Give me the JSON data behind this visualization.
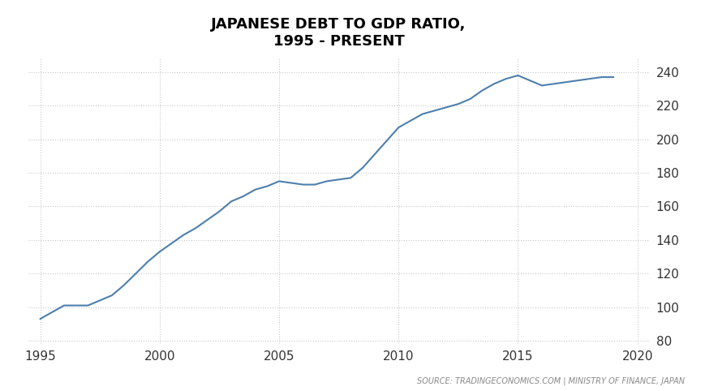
{
  "title": "JAPANESE DEBT TO GDP RATIO,\n1995 - PRESENT",
  "source_text": "SOURCE: TRADINGECONOMICS.COM | MINISTRY OF FINANCE, JAPAN",
  "line_color": "#4d7fad",
  "background_color": "#ffffff",
  "grid_color": "#c8c8c8",
  "title_color": "#000000",
  "source_color": "#888888",
  "xlim": [
    1994.5,
    2020.5
  ],
  "ylim": [
    78,
    248
  ],
  "xticks": [
    1995,
    2000,
    2005,
    2010,
    2015,
    2020
  ],
  "yticks": [
    80,
    100,
    120,
    140,
    160,
    180,
    200,
    220,
    240
  ],
  "years": [
    1995.0,
    1995.5,
    1996.0,
    1996.5,
    1997.0,
    1997.5,
    1998.0,
    1998.5,
    1999.0,
    1999.5,
    2000.0,
    2000.5,
    2001.0,
    2001.5,
    2002.0,
    2002.5,
    2003.0,
    2003.5,
    2004.0,
    2004.5,
    2005.0,
    2005.5,
    2006.0,
    2006.5,
    2007.0,
    2007.5,
    2008.0,
    2008.5,
    2009.0,
    2009.5,
    2010.0,
    2010.5,
    2011.0,
    2011.5,
    2012.0,
    2012.5,
    2013.0,
    2013.5,
    2014.0,
    2014.5,
    2015.0,
    2015.5,
    2016.0,
    2016.5,
    2017.0,
    2017.5,
    2018.0,
    2018.5,
    2019.0
  ],
  "values": [
    93,
    97,
    101,
    101,
    101,
    104,
    107,
    113,
    120,
    127,
    133,
    138,
    143,
    147,
    152,
    157,
    163,
    166,
    170,
    172,
    175,
    174,
    173,
    173,
    175,
    176,
    177,
    183,
    191,
    199,
    207,
    211,
    215,
    217,
    219,
    221,
    224,
    229,
    233,
    236,
    238,
    235,
    232,
    233,
    234,
    235,
    236,
    237,
    237
  ]
}
